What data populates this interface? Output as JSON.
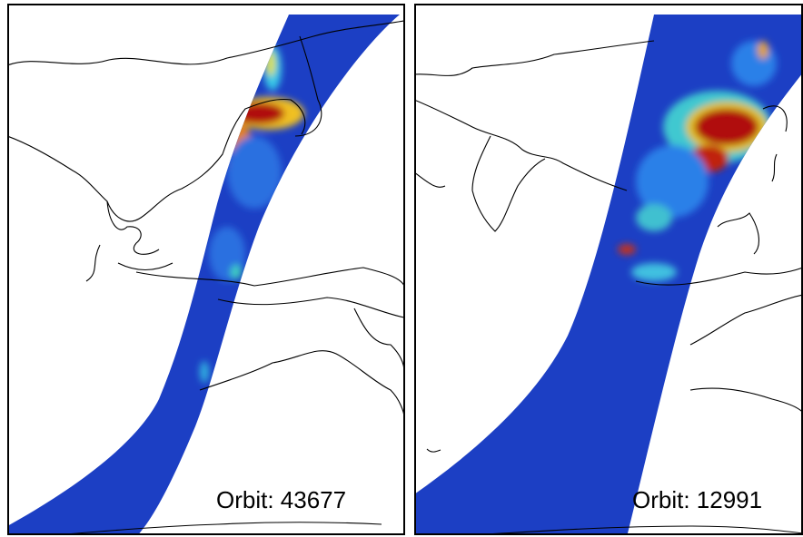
{
  "panels": [
    {
      "label": "Orbit: 43677"
    },
    {
      "label": "Orbit: 12991"
    }
  ]
}
